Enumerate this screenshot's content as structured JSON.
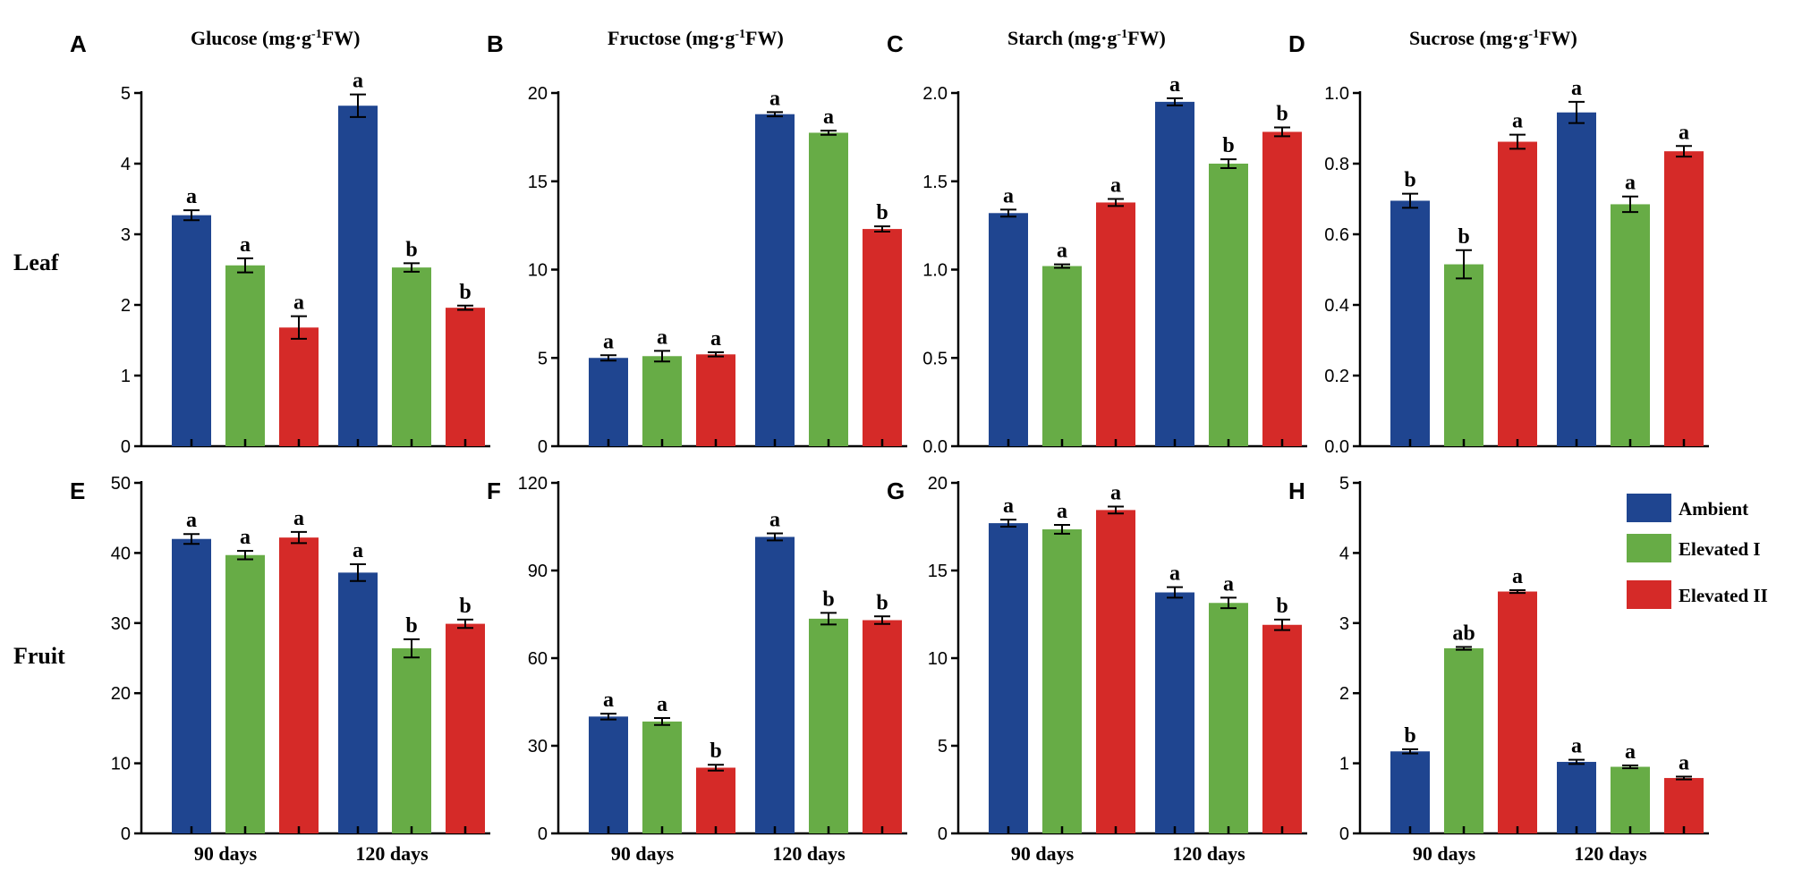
{
  "colors": {
    "Ambient": "#1f4590",
    "Elevated I": "#67ac46",
    "Elevated II": "#d52a28"
  },
  "row_labels": [
    "Leaf",
    "Fruit"
  ],
  "legend": [
    "Ambient",
    "Elevated I",
    "Elevated II"
  ],
  "chart_data": [
    {
      "letter": "A",
      "title_main": "Glucose (mg·g",
      "title_sup": "-1",
      "title_tail": "FW)",
      "type": "bar",
      "categories": [
        "90 days",
        "120 days"
      ],
      "ylim": [
        0,
        5
      ],
      "yticks": [
        0,
        1,
        2,
        3,
        4,
        5
      ],
      "series": [
        {
          "name": "Ambient",
          "values": [
            3.27,
            4.82
          ],
          "errors": [
            0.07,
            0.16
          ],
          "letters": [
            "a",
            "a"
          ]
        },
        {
          "name": "Elevated I",
          "values": [
            2.56,
            2.53
          ],
          "errors": [
            0.1,
            0.06
          ],
          "letters": [
            "a",
            "b"
          ]
        },
        {
          "name": "Elevated II",
          "values": [
            1.68,
            1.96
          ],
          "errors": [
            0.16,
            0.03
          ],
          "letters": [
            "a",
            "b"
          ]
        }
      ]
    },
    {
      "letter": "B",
      "title_main": "Fructose (mg·g",
      "title_sup": "-1",
      "title_tail": "FW)",
      "type": "bar",
      "categories": [
        "90 days",
        "120 days"
      ],
      "ylim": [
        0,
        20
      ],
      "yticks": [
        0,
        5,
        10,
        15,
        20
      ],
      "series": [
        {
          "name": "Ambient",
          "values": [
            5.0,
            18.8
          ],
          "errors": [
            0.15,
            0.12
          ],
          "letters": [
            "a",
            "a"
          ]
        },
        {
          "name": "Elevated I",
          "values": [
            5.1,
            17.75
          ],
          "errors": [
            0.3,
            0.12
          ],
          "letters": [
            "a",
            "a"
          ]
        },
        {
          "name": "Elevated II",
          "values": [
            5.2,
            12.3
          ],
          "errors": [
            0.12,
            0.15
          ],
          "letters": [
            "a",
            "b"
          ]
        }
      ]
    },
    {
      "letter": "C",
      "title_main": "Starch (mg·g",
      "title_sup": "-1",
      "title_tail": "FW)",
      "type": "bar",
      "categories": [
        "90 days",
        "120 days"
      ],
      "ylim": [
        0,
        2.0
      ],
      "yticks": [
        0.0,
        0.5,
        1.0,
        1.5,
        2.0
      ],
      "series": [
        {
          "name": "Ambient",
          "values": [
            1.32,
            1.95
          ],
          "errors": [
            0.02,
            0.02
          ],
          "letters": [
            "a",
            "a"
          ]
        },
        {
          "name": "Elevated I",
          "values": [
            1.02,
            1.6
          ],
          "errors": [
            0.01,
            0.025
          ],
          "letters": [
            "a",
            "b"
          ]
        },
        {
          "name": "Elevated II",
          "values": [
            1.38,
            1.78
          ],
          "errors": [
            0.02,
            0.025
          ],
          "letters": [
            "a",
            "b"
          ]
        }
      ]
    },
    {
      "letter": "D",
      "title_main": "Sucrose (mg·g",
      "title_sup": "-1",
      "title_tail": "FW)",
      "type": "bar",
      "categories": [
        "90 days",
        "120 days"
      ],
      "ylim": [
        0,
        1.0
      ],
      "yticks": [
        0.0,
        0.2,
        0.4,
        0.6,
        0.8,
        1.0
      ],
      "series": [
        {
          "name": "Ambient",
          "values": [
            0.695,
            0.945
          ],
          "errors": [
            0.02,
            0.03
          ],
          "letters": [
            "b",
            "a"
          ]
        },
        {
          "name": "Elevated I",
          "values": [
            0.515,
            0.685
          ],
          "errors": [
            0.04,
            0.022
          ],
          "letters": [
            "b",
            "a"
          ]
        },
        {
          "name": "Elevated II",
          "values": [
            0.862,
            0.835
          ],
          "errors": [
            0.02,
            0.015
          ],
          "letters": [
            "a",
            "a"
          ]
        }
      ]
    },
    {
      "letter": "E",
      "title_main": "",
      "title_sup": "",
      "title_tail": "",
      "type": "bar",
      "categories": [
        "90 days",
        "120 days"
      ],
      "ylim": [
        0,
        50
      ],
      "yticks": [
        0,
        10,
        20,
        30,
        40,
        50
      ],
      "series": [
        {
          "name": "Ambient",
          "values": [
            42.0,
            37.2
          ],
          "errors": [
            0.7,
            1.2
          ],
          "letters": [
            "a",
            "a"
          ]
        },
        {
          "name": "Elevated I",
          "values": [
            39.7,
            26.4
          ],
          "errors": [
            0.6,
            1.3
          ],
          "letters": [
            "a",
            "b"
          ]
        },
        {
          "name": "Elevated II",
          "values": [
            42.2,
            29.9
          ],
          "errors": [
            0.8,
            0.6
          ],
          "letters": [
            "a",
            "b"
          ]
        }
      ]
    },
    {
      "letter": "F",
      "title_main": "",
      "title_sup": "",
      "title_tail": "",
      "type": "bar",
      "categories": [
        "90 days",
        "120 days"
      ],
      "ylim": [
        0,
        120
      ],
      "yticks": [
        0,
        30,
        60,
        90,
        120
      ],
      "series": [
        {
          "name": "Ambient",
          "values": [
            40.0,
            101.5
          ],
          "errors": [
            1.0,
            1.2
          ],
          "letters": [
            "a",
            "a"
          ]
        },
        {
          "name": "Elevated I",
          "values": [
            38.3,
            73.5
          ],
          "errors": [
            1.2,
            2.0
          ],
          "letters": [
            "a",
            "b"
          ]
        },
        {
          "name": "Elevated II",
          "values": [
            22.5,
            73.0
          ],
          "errors": [
            1.0,
            1.3
          ],
          "letters": [
            "b",
            "b"
          ]
        }
      ]
    },
    {
      "letter": "G",
      "title_main": "",
      "title_sup": "",
      "title_tail": "",
      "type": "bar",
      "categories": [
        "90 days",
        "120 days"
      ],
      "ylim": [
        0,
        20
      ],
      "yticks": [
        0,
        5,
        10,
        15,
        20
      ],
      "series": [
        {
          "name": "Ambient",
          "values": [
            17.7,
            13.75
          ],
          "errors": [
            0.2,
            0.3
          ],
          "letters": [
            "a",
            "a"
          ]
        },
        {
          "name": "Elevated I",
          "values": [
            17.35,
            13.15
          ],
          "errors": [
            0.25,
            0.3
          ],
          "letters": [
            "a",
            "a"
          ]
        },
        {
          "name": "Elevated II",
          "values": [
            18.45,
            11.9
          ],
          "errors": [
            0.2,
            0.3
          ],
          "letters": [
            "a",
            "b"
          ]
        }
      ]
    },
    {
      "letter": "H",
      "title_main": "",
      "title_sup": "",
      "title_tail": "",
      "type": "bar",
      "categories": [
        "90 days",
        "120 days"
      ],
      "ylim": [
        0,
        5
      ],
      "yticks": [
        0,
        1,
        2,
        3,
        4,
        5
      ],
      "series": [
        {
          "name": "Ambient",
          "values": [
            1.17,
            1.02
          ],
          "errors": [
            0.03,
            0.03
          ],
          "letters": [
            "b",
            "a"
          ]
        },
        {
          "name": "Elevated I",
          "values": [
            2.64,
            0.95
          ],
          "errors": [
            0.02,
            0.02
          ],
          "letters": [
            "ab",
            "a"
          ]
        },
        {
          "name": "Elevated II",
          "values": [
            3.45,
            0.79
          ],
          "errors": [
            0.02,
            0.02
          ],
          "letters": [
            "a",
            "a"
          ]
        }
      ]
    }
  ]
}
